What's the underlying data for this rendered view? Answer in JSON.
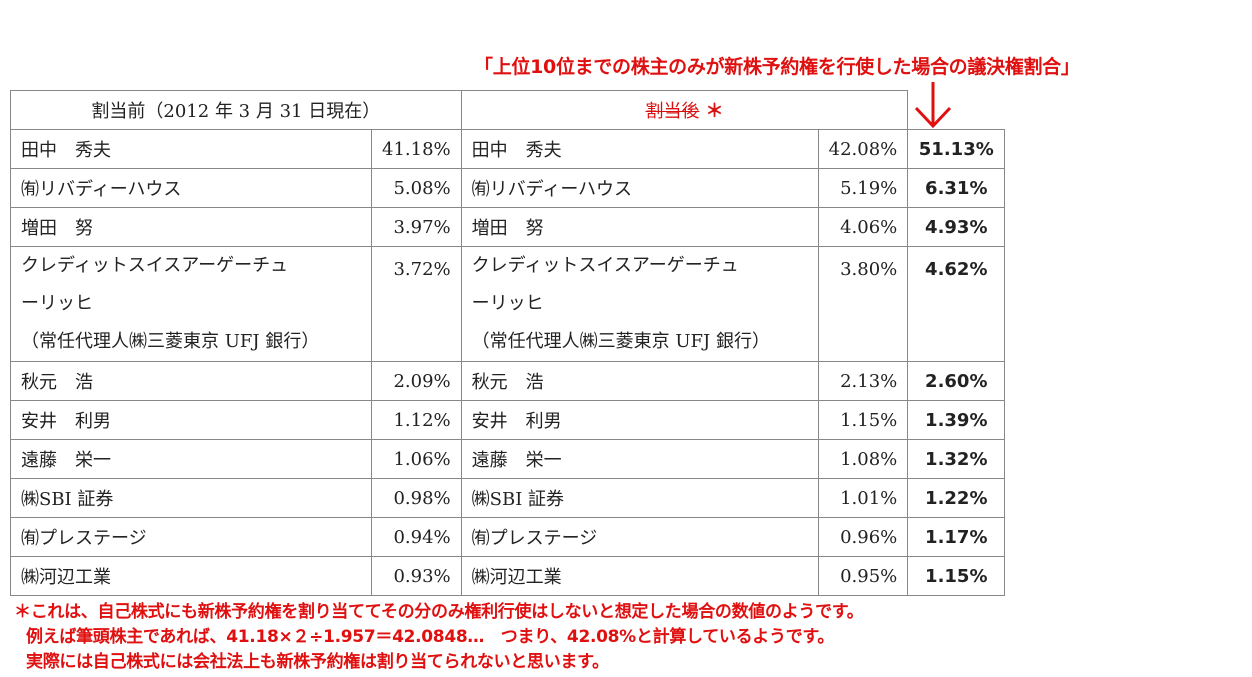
{
  "top_note": "「上位10位までの株主のみが新株予約権を行使した場合の議決権割合」",
  "header": {
    "before": "割当前（2012 年 3 月 31 日現在）",
    "after": "割当後",
    "after_marker": "＊"
  },
  "rows": [
    {
      "name_before": [
        "田中　秀夫"
      ],
      "pct_before": "41.18%",
      "name_after": [
        "田中　秀夫"
      ],
      "pct_after": "42.08%",
      "ratio": "51.13%"
    },
    {
      "name_before": [
        "㈲リバディーハウス"
      ],
      "pct_before": "5.08%",
      "name_after": [
        "㈲リバディーハウス"
      ],
      "pct_after": "5.19%",
      "ratio": "6.31%"
    },
    {
      "name_before": [
        "増田　努"
      ],
      "pct_before": "3.97%",
      "name_after": [
        "増田　努"
      ],
      "pct_after": "4.06%",
      "ratio": "4.93%"
    },
    {
      "name_before": [
        "クレディットスイスアーゲーチュ",
        "ーリッヒ",
        "（常任代理人㈱三菱東京 UFJ 銀行）"
      ],
      "pct_before": "3.72%",
      "name_after": [
        "クレディットスイスアーゲーチュ",
        "ーリッヒ",
        "（常任代理人㈱三菱東京 UFJ 銀行）"
      ],
      "pct_after": "3.80%",
      "ratio": "4.62%"
    },
    {
      "name_before": [
        "秋元　浩"
      ],
      "pct_before": "2.09%",
      "name_after": [
        "秋元　浩"
      ],
      "pct_after": "2.13%",
      "ratio": "2.60%"
    },
    {
      "name_before": [
        "安井　利男"
      ],
      "pct_before": "1.12%",
      "name_after": [
        "安井　利男"
      ],
      "pct_after": "1.15%",
      "ratio": "1.39%"
    },
    {
      "name_before": [
        "遠藤　栄一"
      ],
      "pct_before": "1.06%",
      "name_after": [
        "遠藤　栄一"
      ],
      "pct_after": "1.08%",
      "ratio": "1.32%"
    },
    {
      "name_before": [
        "㈱SBI 証券"
      ],
      "pct_before": "0.98%",
      "name_after": [
        "㈱SBI 証券"
      ],
      "pct_after": "1.01%",
      "ratio": "1.22%"
    },
    {
      "name_before": [
        "㈲プレステージ"
      ],
      "pct_before": "0.94%",
      "name_after": [
        "㈲プレステージ"
      ],
      "pct_after": "0.96%",
      "ratio": "1.17%"
    },
    {
      "name_before": [
        "㈱河辺工業"
      ],
      "pct_before": "0.93%",
      "name_after": [
        "㈱河辺工業"
      ],
      "pct_after": "0.95%",
      "ratio": "1.15%"
    }
  ],
  "bottom_notes": [
    "＊これは、自己株式にも新株予約権を割り当ててその分のみ権利行使はしないと想定した場合の数値のようです。",
    "例えば筆頭株主であれば、41.18×２÷1.957＝42.0848…　つまり、42.08%と計算しているようです。",
    "実際には自己株式には会社法上も新株予約権は割り当てられないと思います。"
  ]
}
